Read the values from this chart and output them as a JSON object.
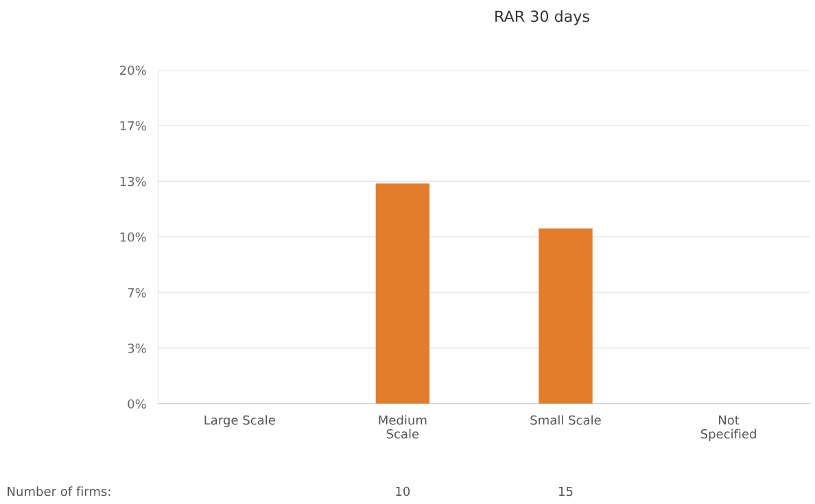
{
  "chart_data": {
    "type": "bar",
    "title": "RAR 30 days",
    "categories": [
      "Large Scale",
      "Medium Scale",
      "Small Scale",
      "Not Specified"
    ],
    "values": [
      null,
      13.2,
      10.5,
      null
    ],
    "color": "#e27d2e",
    "ylim": [
      0,
      20
    ],
    "yticks": [
      {
        "value": 0,
        "label": "0%"
      },
      {
        "value": 3.333,
        "label": "3%"
      },
      {
        "value": 6.667,
        "label": "7%"
      },
      {
        "value": 10,
        "label": "10%"
      },
      {
        "value": 13.333,
        "label": "13%"
      },
      {
        "value": 16.667,
        "label": "17%"
      },
      {
        "value": 20,
        "label": "20%"
      }
    ],
    "grid": "y",
    "legend": false,
    "annotations": [
      "Number of firms:",
      "10",
      "15"
    ]
  }
}
